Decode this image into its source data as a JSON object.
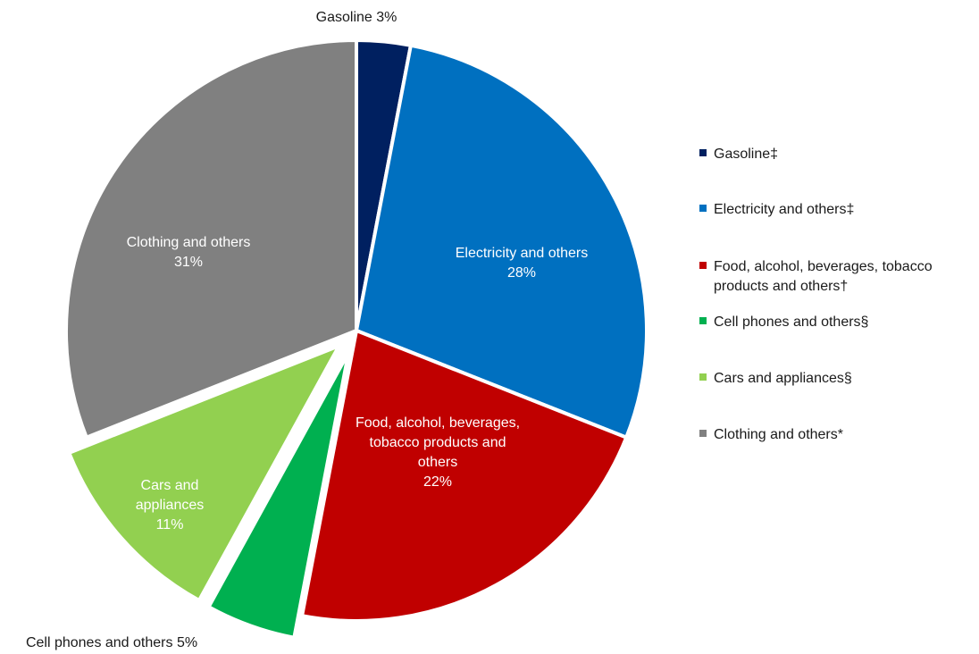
{
  "chart_data": {
    "type": "pie",
    "title": "",
    "series": [
      {
        "name": "",
        "slices": [
          {
            "key": "gasoline",
            "value": 3,
            "color": "#002060",
            "label_lines": [
              "Gasoline 3%"
            ],
            "label_outside": true,
            "legend_lines": [
              "Gasoline‡"
            ]
          },
          {
            "key": "electricity",
            "value": 28,
            "color": "#0070C0",
            "label_lines": [
              "Electricity and others",
              "28%"
            ],
            "label_outside": false,
            "legend_lines": [
              "Electricity and others‡"
            ]
          },
          {
            "key": "food",
            "value": 22,
            "color": "#C00000",
            "label_lines": [
              "Food, alcohol, beverages,",
              "tobacco products and",
              "others",
              "22%"
            ],
            "label_outside": false,
            "legend_lines": [
              "Food, alcohol, beverages, tobacco",
              "products and others†"
            ]
          },
          {
            "key": "cell-phones",
            "value": 5,
            "color": "#00B050",
            "label_lines": [
              "Cell phones and others 5%"
            ],
            "label_outside": true,
            "legend_lines": [
              "Cell phones and others§"
            ],
            "exploded": true
          },
          {
            "key": "cars",
            "value": 11,
            "color": "#92D050",
            "label_lines": [
              "Cars and",
              "appliances",
              "11%"
            ],
            "label_outside": false,
            "legend_lines": [
              "Cars and appliances§"
            ],
            "exploded": true
          },
          {
            "key": "clothing",
            "value": 31,
            "color": "#808080",
            "label_lines": [
              "Clothing and others",
              "31%"
            ],
            "label_outside": false,
            "legend_lines": [
              "Clothing and others*"
            ]
          }
        ]
      }
    ],
    "legend": {
      "placement": "right"
    }
  }
}
